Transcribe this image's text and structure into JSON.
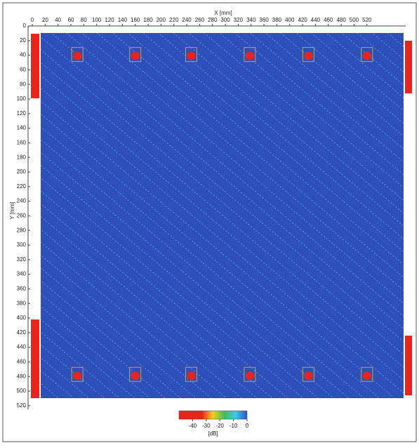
{
  "chart_data": {
    "type": "heatmap",
    "xlabel": "X [mm]",
    "ylabel": "Y [mm]",
    "xlim": [
      0,
      578
    ],
    "ylim": [
      0,
      525
    ],
    "xticks": [
      0,
      20,
      40,
      60,
      80,
      100,
      120,
      140,
      160,
      180,
      200,
      220,
      240,
      260,
      280,
      300,
      320,
      340,
      360,
      380,
      400,
      420,
      440,
      460,
      480,
      500,
      520
    ],
    "yticks": [
      0,
      20,
      40,
      60,
      80,
      100,
      120,
      140,
      160,
      180,
      200,
      220,
      240,
      260,
      280,
      300,
      320,
      340,
      360,
      380,
      400,
      420,
      440,
      460,
      480,
      500,
      520
    ],
    "series": [
      {
        "color": "#e8241c",
        "x": [
          70,
          160,
          247,
          338,
          429,
          520,
          70,
          160,
          247,
          338,
          429,
          520
        ],
        "y": [
          41,
          41,
          41,
          41,
          41,
          41,
          479,
          479,
          479,
          479,
          479,
          479
        ]
      }
    ],
    "colorbar": {
      "label": "[dB]",
      "lim": [
        -50,
        0
      ],
      "ticks": [
        -40,
        -30,
        -20,
        -10,
        0
      ],
      "colors": [
        "#e8241c",
        "#e8241c",
        "#e8241c",
        "#f0d020",
        "#40c060",
        "#40c8e8",
        "#3050c0"
      ]
    }
  }
}
